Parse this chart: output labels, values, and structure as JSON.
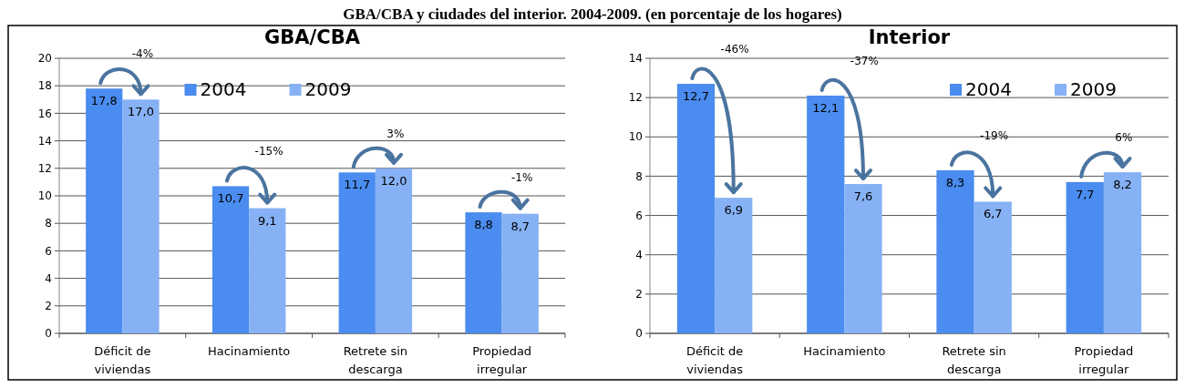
{
  "chart_data": [
    {
      "type": "bar",
      "title": "GBA/CBA",
      "annotations": [
        "-4%",
        "-15%",
        "3%",
        "-1%",
        "GBA/CBA y ciudades del interior. 2004-2009. (en porcentaje de los hogares)"
      ],
      "categories": [
        "Déficit de viviendas",
        "Hacinamiento",
        "Retrete sin descarga",
        "Propiedad irregular"
      ],
      "series": [
        {
          "name": "2004",
          "color": "#4a8cef",
          "values": [
            17.8,
            10.7,
            11.7,
            8.8
          ],
          "value_labels": [
            "17,8",
            "10,7",
            "11,7",
            "8,8"
          ]
        },
        {
          "name": "2009",
          "color": "#86b1f5",
          "values": [
            17.0,
            9.1,
            12.0,
            8.7
          ],
          "value_labels": [
            "17,0",
            "9,1",
            "12,0",
            "8,7"
          ]
        }
      ],
      "ylim": [
        0,
        20
      ],
      "yticks": [
        0,
        2,
        4,
        6,
        8,
        10,
        12,
        14,
        16,
        18,
        20
      ],
      "grid": "y",
      "legend": "top"
    },
    {
      "type": "bar",
      "title": "Interior",
      "annotations": [
        "-46%",
        "-37%",
        "-19%",
        "6%"
      ],
      "categories": [
        "Déficit de viviendas",
        "Hacinamiento",
        "Retrete sin descarga",
        "Propiedad irregular"
      ],
      "series": [
        {
          "name": "2004",
          "color": "#4a8cef",
          "values": [
            12.7,
            12.1,
            8.3,
            7.7
          ],
          "value_labels": [
            "12,7",
            "12,1",
            "8,3",
            "7,7"
          ]
        },
        {
          "name": "2009",
          "color": "#86b1f5",
          "values": [
            6.9,
            7.6,
            6.7,
            8.2
          ],
          "value_labels": [
            "6,9",
            "7,6",
            "6,7",
            "8,2"
          ]
        }
      ],
      "ylim": [
        0,
        14
      ],
      "yticks": [
        0,
        2,
        4,
        6,
        8,
        10,
        12,
        14
      ],
      "grid": "y",
      "legend": "top right"
    }
  ]
}
